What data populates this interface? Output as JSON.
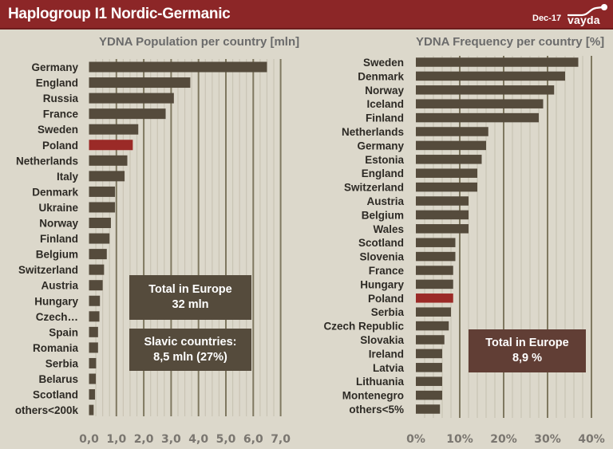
{
  "header": {
    "title": "Haplogroup I1 Nordic-Germanic",
    "date": "Dec-17",
    "logo_text": "vayda"
  },
  "colors": {
    "header_bg": "#8c2627",
    "bar": "#554b3c",
    "highlight_bar": "#9b2a27",
    "background": "#dcd8cb",
    "major_grid": "#7f7860",
    "minor_grid": "#c9c4b4"
  },
  "chart_data": [
    {
      "type": "bar",
      "orientation": "horizontal",
      "title": "YDNA Population per country [mln]",
      "xlabel": "",
      "ylabel": "",
      "xlim": [
        0,
        7
      ],
      "tick_step": 1,
      "minor_step": 0.25,
      "tick_labels": [
        "0,0",
        "1,0",
        "2,0",
        "3,0",
        "4,0",
        "5,0",
        "6,0",
        "7,0"
      ],
      "grid": true,
      "categories": [
        "Germany",
        "England",
        "Russia",
        "France",
        "Sweden",
        "Poland",
        "Netherlands",
        "Italy",
        "Denmark",
        "Ukraine",
        "Norway",
        "Finland",
        "Belgium",
        "Switzerland",
        "Austria",
        "Hungary",
        "Czech…",
        "Spain",
        "Romania",
        "Serbia",
        "Belarus",
        "Scotland",
        "others<200k"
      ],
      "values": [
        6.5,
        3.7,
        3.1,
        2.8,
        1.8,
        1.6,
        1.4,
        1.3,
        0.95,
        0.95,
        0.8,
        0.75,
        0.65,
        0.55,
        0.5,
        0.4,
        0.38,
        0.33,
        0.33,
        0.26,
        0.25,
        0.22,
        0.17
      ],
      "highlight": "Poland",
      "annotations": [
        {
          "line1": "Total in Europe",
          "line2": "32 mln"
        },
        {
          "line1": "Slavic countries:",
          "line2": "8,5 mln (27%)"
        }
      ]
    },
    {
      "type": "bar",
      "orientation": "horizontal",
      "title": "YDNA Frequency per country [%]",
      "xlabel": "",
      "ylabel": "",
      "xlim": [
        0,
        40
      ],
      "tick_step": 10,
      "minor_step": 2,
      "tick_labels": [
        "0%",
        "10%",
        "20%",
        "30%",
        "40%"
      ],
      "grid": true,
      "categories": [
        "Sweden",
        "Denmark",
        "Norway",
        "Iceland",
        "Finland",
        "Netherlands",
        "Germany",
        "Estonia",
        "England",
        "Switzerland",
        "Austria",
        "Belgium",
        "Wales",
        "Scotland",
        "Slovenia",
        "France",
        "Hungary",
        "Poland",
        "Serbia",
        "Czech Republic",
        "Slovakia",
        "Ireland",
        "Latvia",
        "Lithuania",
        "Montenegro",
        "others<5%"
      ],
      "values": [
        37,
        34,
        31.5,
        29,
        28,
        16.5,
        16,
        15,
        14,
        14,
        12,
        12,
        12,
        9,
        9,
        8.5,
        8.5,
        8.5,
        8,
        7.5,
        6.5,
        6,
        6,
        6,
        6,
        5.5
      ],
      "highlight": "Poland",
      "annotations": [
        {
          "line1": "Total in Europe",
          "line2": "8,9 %"
        }
      ]
    }
  ]
}
